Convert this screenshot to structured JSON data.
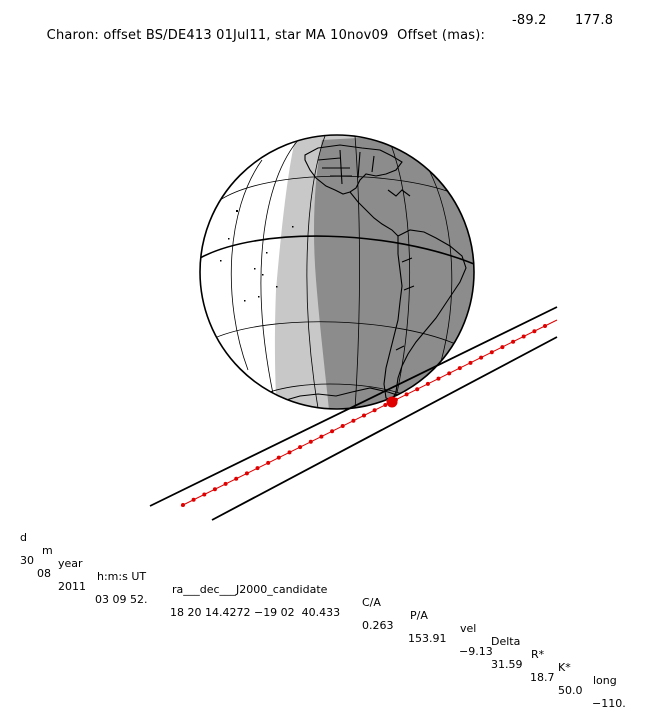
{
  "header": {
    "title": "Charon: offset BS/DE413 01Jul11, star MA 10nov09  Offset (mas):",
    "offset_ra": "-89.2",
    "offset_dec": "177.8"
  },
  "table": {
    "columns": [
      "d",
      "m",
      "year",
      "h:m:s UT",
      "ra___dec___J2000_candidate",
      "C/A",
      "P/A",
      "vel",
      "Delta",
      "R*",
      "K*",
      "long"
    ],
    "values": [
      "30",
      "08",
      "2011",
      "03 09 52.",
      "18 20 14.4272 −19 02  40.433",
      "0.263",
      "153.91",
      "−9.13",
      "31.59",
      "18.7",
      "50.0",
      "−110."
    ]
  },
  "colors": {
    "night": "#8c8c8c",
    "twilight": "#c8c8c8",
    "day": "#ffffff",
    "track": "#e00000",
    "outline": "#000000"
  },
  "event": {
    "closest_approach_marker": "large red dot",
    "track_markers": "small red dots"
  }
}
